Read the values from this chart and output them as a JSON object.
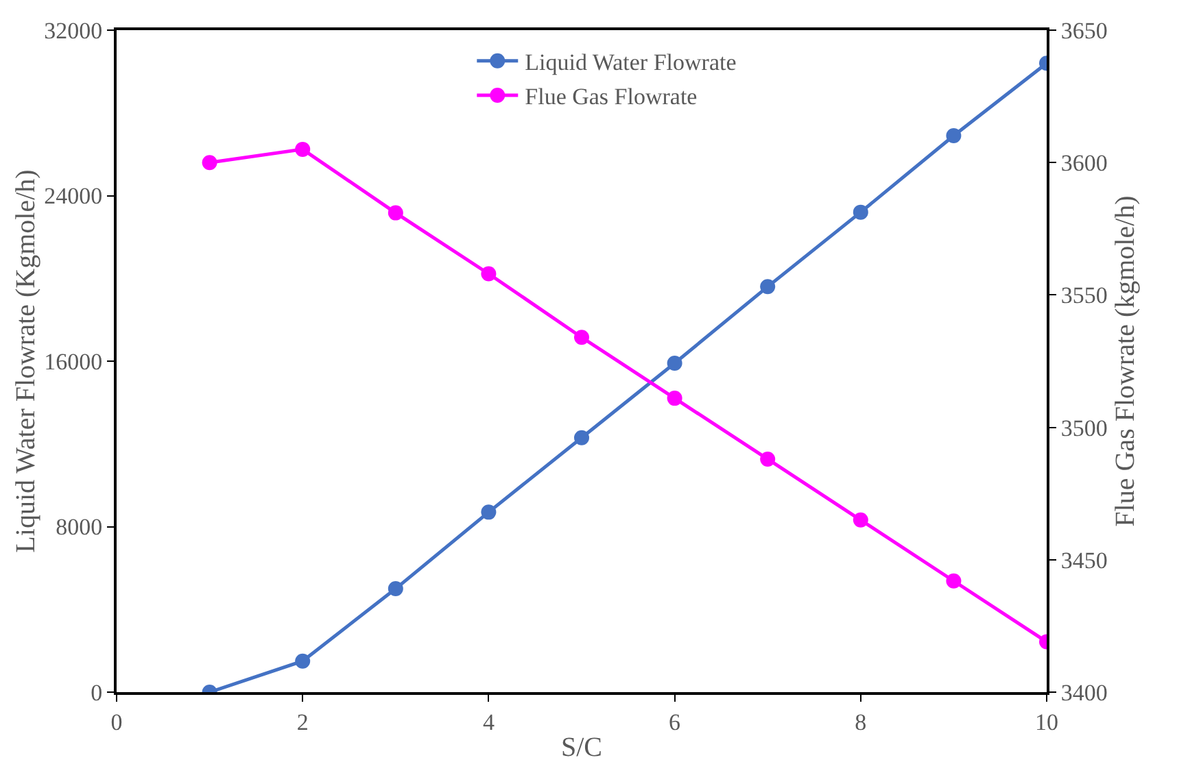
{
  "chart_data": {
    "type": "line",
    "xlabel": "S/C",
    "ylabel": "Liquid Water Flowrate (Kgmole/h)",
    "y2label": "Flue Gas Flowrate (kgmole/h)",
    "x": [
      1,
      2,
      3,
      4,
      5,
      6,
      7,
      8,
      9,
      10
    ],
    "series": [
      {
        "name": "Liquid Water Flowrate",
        "color": "#4472c4",
        "values": [
          0,
          1500,
          5000,
          8700,
          12300,
          15900,
          19600,
          23200,
          26900,
          30400
        ]
      },
      {
        "name": "Flue Gas Flowrate",
        "color": "#ff00ff",
        "axis": "y2",
        "values": [
          3600,
          3605,
          3581,
          3558,
          3534,
          3511,
          3488,
          3465,
          3442,
          3419
        ]
      }
    ],
    "xlim": [
      0,
      10
    ],
    "xticks": [
      0,
      2,
      4,
      6,
      8,
      10
    ],
    "ylim": [
      0,
      32000
    ],
    "yticks": [
      0,
      8000,
      16000,
      24000,
      32000
    ],
    "y2lim": [
      3400,
      3650
    ],
    "y2ticks": [
      3400,
      3450,
      3500,
      3550,
      3600,
      3650
    ],
    "grid": false,
    "legend": "top",
    "marker": "circle",
    "line_style": "solid"
  }
}
